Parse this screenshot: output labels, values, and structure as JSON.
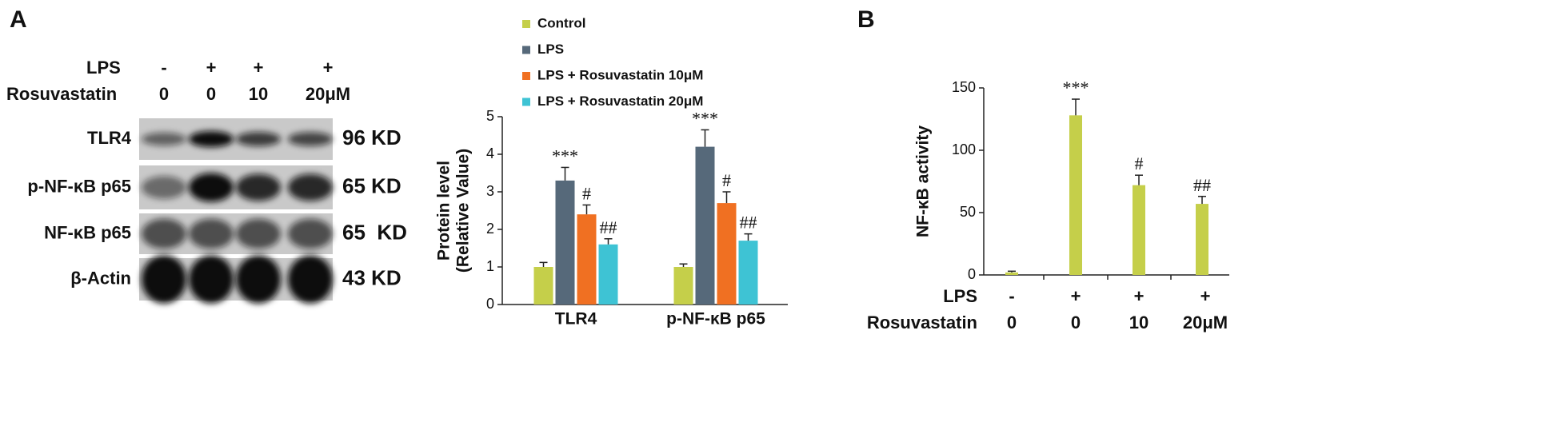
{
  "panel_labels": [
    "A",
    "B"
  ],
  "blot": {
    "treatments": [
      {
        "label": "LPS",
        "values": [
          "-",
          "+",
          "+",
          "+"
        ]
      },
      {
        "label": "Rosuvastatin",
        "values": [
          "0",
          "0",
          "10",
          "20μM"
        ]
      }
    ],
    "bands": [
      {
        "name": "TLR4",
        "size": "96 KD"
      },
      {
        "name": "p-NF-κB p65",
        "size": "65 KD"
      },
      {
        "name": "NF-κB p65",
        "size": "65  KD"
      },
      {
        "name": "β-Actin",
        "size": "43 KD"
      }
    ]
  },
  "chart_data": [
    {
      "type": "bar",
      "ylabel": [
        "Protein level",
        "(Relative Value)"
      ],
      "categories": [
        "TLR4",
        "p-NF-κB p65"
      ],
      "ylim": [
        0,
        5
      ],
      "yticks": [
        0,
        1,
        2,
        3,
        4,
        5
      ],
      "series": [
        {
          "name": "Control",
          "color": "#c5cf4a",
          "values": [
            1.0,
            1.0
          ],
          "errors": [
            0.12,
            0.08
          ],
          "annotations": [
            null,
            null
          ]
        },
        {
          "name": "LPS",
          "color": "#56697a",
          "values": [
            3.3,
            4.2
          ],
          "errors": [
            0.35,
            0.45
          ],
          "annotations": [
            "***",
            "***"
          ]
        },
        {
          "name": "LPS + Rosuvastatin 10μM",
          "color": "#f07022",
          "values": [
            2.4,
            2.7
          ],
          "errors": [
            0.25,
            0.3
          ],
          "annotations": [
            "#",
            "#"
          ]
        },
        {
          "name": "LPS + Rosuvastatin 20μM",
          "color": "#3ec3d4",
          "values": [
            1.6,
            1.7
          ],
          "errors": [
            0.15,
            0.18
          ],
          "annotations": [
            "##",
            "##"
          ]
        }
      ]
    },
    {
      "type": "bar",
      "ylabel": [
        "NF-κB activity"
      ],
      "ylim": [
        0,
        150
      ],
      "yticks": [
        0,
        50,
        100,
        150
      ],
      "color": "#c5cf4a",
      "values": [
        2,
        128,
        72,
        57
      ],
      "errors": [
        1,
        13,
        8,
        6
      ],
      "annotations": [
        null,
        "***",
        "#",
        "##"
      ],
      "treatments": [
        {
          "label": "LPS",
          "values": [
            "-",
            "+",
            "+",
            "+"
          ]
        },
        {
          "label": "Rosuvastatin",
          "values": [
            "0",
            "0",
            "10",
            "20μM"
          ]
        }
      ]
    }
  ]
}
